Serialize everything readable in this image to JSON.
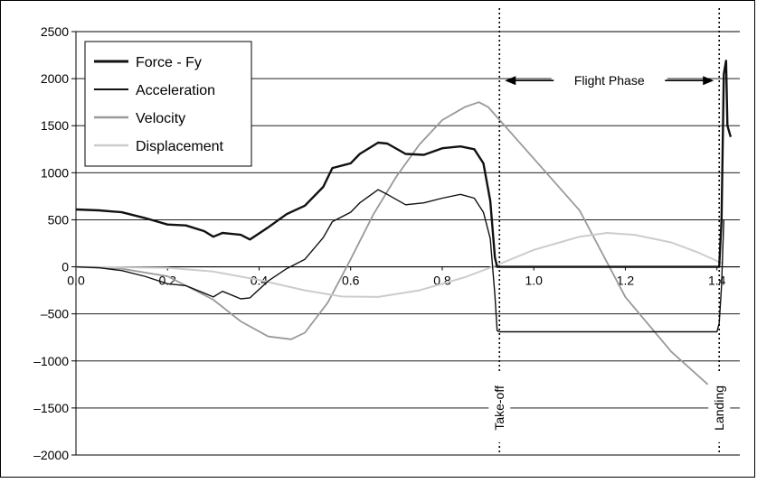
{
  "chart_data": {
    "type": "line",
    "title": "",
    "xlabel": "",
    "ylabel": "",
    "xlim": [
      0,
      1.45
    ],
    "ylim": [
      -2000,
      2500
    ],
    "x_ticks": [
      "0.0",
      "0.2",
      "0.4",
      "0.6",
      "0.8",
      "1.0",
      "1.2",
      "1.4"
    ],
    "y_ticks": [
      "2500",
      "2000",
      "1500",
      "1000",
      "500",
      "0",
      "–500",
      "–1000",
      "–1500",
      "–2000"
    ],
    "grid": "horizontal",
    "legend_position": "top-left",
    "series": [
      {
        "name": "Force - Fy",
        "color": "#111111",
        "width": 2.4,
        "points": [
          [
            0,
            610
          ],
          [
            0.05,
            600
          ],
          [
            0.1,
            580
          ],
          [
            0.15,
            520
          ],
          [
            0.2,
            450
          ],
          [
            0.24,
            440
          ],
          [
            0.28,
            380
          ],
          [
            0.3,
            320
          ],
          [
            0.32,
            360
          ],
          [
            0.36,
            340
          ],
          [
            0.38,
            290
          ],
          [
            0.42,
            420
          ],
          [
            0.46,
            560
          ],
          [
            0.5,
            650
          ],
          [
            0.54,
            850
          ],
          [
            0.56,
            1050
          ],
          [
            0.6,
            1100
          ],
          [
            0.62,
            1200
          ],
          [
            0.66,
            1320
          ],
          [
            0.68,
            1310
          ],
          [
            0.72,
            1200
          ],
          [
            0.76,
            1190
          ],
          [
            0.8,
            1260
          ],
          [
            0.84,
            1280
          ],
          [
            0.87,
            1250
          ],
          [
            0.89,
            1100
          ],
          [
            0.905,
            700
          ],
          [
            0.915,
            100
          ],
          [
            0.92,
            0
          ],
          [
            1.405,
            0
          ],
          [
            1.41,
            500
          ],
          [
            1.415,
            2050
          ],
          [
            1.42,
            2190
          ],
          [
            1.423,
            1500
          ],
          [
            1.43,
            1380
          ]
        ]
      },
      {
        "name": "Acceleration",
        "color": "#111111",
        "width": 1.4,
        "points": [
          [
            0,
            0
          ],
          [
            0.05,
            -10
          ],
          [
            0.1,
            -40
          ],
          [
            0.15,
            -100
          ],
          [
            0.2,
            -180
          ],
          [
            0.24,
            -200
          ],
          [
            0.28,
            -280
          ],
          [
            0.3,
            -320
          ],
          [
            0.32,
            -260
          ],
          [
            0.34,
            -300
          ],
          [
            0.36,
            -340
          ],
          [
            0.38,
            -330
          ],
          [
            0.42,
            -150
          ],
          [
            0.46,
            -20
          ],
          [
            0.5,
            80
          ],
          [
            0.54,
            310
          ],
          [
            0.56,
            480
          ],
          [
            0.6,
            580
          ],
          [
            0.62,
            680
          ],
          [
            0.66,
            820
          ],
          [
            0.68,
            770
          ],
          [
            0.72,
            660
          ],
          [
            0.76,
            680
          ],
          [
            0.8,
            730
          ],
          [
            0.84,
            770
          ],
          [
            0.87,
            730
          ],
          [
            0.89,
            580
          ],
          [
            0.905,
            300
          ],
          [
            0.915,
            -300
          ],
          [
            0.92,
            -680
          ],
          [
            0.925,
            -690
          ],
          [
            1.4,
            -690
          ],
          [
            1.405,
            -600
          ],
          [
            1.41,
            -200
          ],
          [
            1.415,
            500
          ]
        ]
      },
      {
        "name": "Velocity",
        "color": "#999999",
        "width": 1.8,
        "points": [
          [
            0,
            0
          ],
          [
            0.1,
            -20
          ],
          [
            0.2,
            -100
          ],
          [
            0.3,
            -350
          ],
          [
            0.36,
            -580
          ],
          [
            0.42,
            -740
          ],
          [
            0.47,
            -770
          ],
          [
            0.5,
            -700
          ],
          [
            0.55,
            -380
          ],
          [
            0.6,
            80
          ],
          [
            0.65,
            560
          ],
          [
            0.7,
            960
          ],
          [
            0.75,
            1300
          ],
          [
            0.8,
            1560
          ],
          [
            0.85,
            1700
          ],
          [
            0.88,
            1750
          ],
          [
            0.9,
            1700
          ],
          [
            1.0,
            1150
          ],
          [
            1.1,
            600
          ],
          [
            1.2,
            -320
          ],
          [
            1.3,
            -900
          ],
          [
            1.38,
            -1250
          ]
        ]
      },
      {
        "name": "Displacement",
        "color": "#cccccc",
        "width": 2.0,
        "points": [
          [
            0,
            0
          ],
          [
            0.2,
            -10
          ],
          [
            0.3,
            -50
          ],
          [
            0.4,
            -140
          ],
          [
            0.5,
            -250
          ],
          [
            0.58,
            -315
          ],
          [
            0.66,
            -320
          ],
          [
            0.75,
            -250
          ],
          [
            0.85,
            -110
          ],
          [
            0.92,
            20
          ],
          [
            1.0,
            180
          ],
          [
            1.1,
            320
          ],
          [
            1.16,
            360
          ],
          [
            1.22,
            340
          ],
          [
            1.3,
            260
          ],
          [
            1.36,
            150
          ],
          [
            1.41,
            40
          ]
        ]
      }
    ],
    "markers": [
      {
        "name": "take-off",
        "x": 0.925,
        "label": "Take-off"
      },
      {
        "name": "landing",
        "x": 1.405,
        "label": "Landing"
      }
    ],
    "annotations": {
      "flight_phase": "Flight Phase"
    }
  }
}
